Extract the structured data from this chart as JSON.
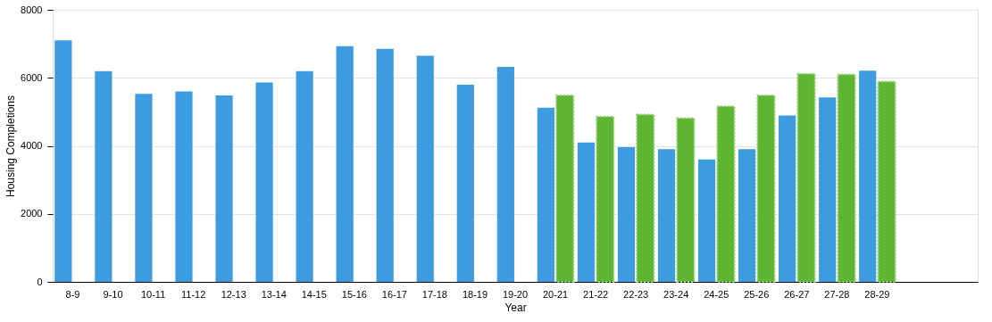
{
  "chart_data": {
    "type": "bar",
    "xlabel": "Year",
    "ylabel": "Housing Completions",
    "categories": [
      "8-9",
      "9-10",
      "10-11",
      "11-12",
      "12-13",
      "13-14",
      "14-15",
      "15-16",
      "16-17",
      "17-18",
      "18-19",
      "19-20",
      "20-21",
      "21-22",
      "22-23",
      "23-24",
      "24-25",
      "25-26",
      "26-27",
      "27-28",
      "28-29",
      null,
      null
    ],
    "series": [
      {
        "color": "#3d9be0",
        "values": [
          7100,
          6200,
          5530,
          5600,
          5480,
          5860,
          6200,
          6930,
          6850,
          6650,
          5800,
          6320,
          5120,
          4100,
          3960,
          3900,
          3600,
          3900,
          4890,
          5420,
          6210,
          null,
          null
        ]
      },
      {
        "color": "#5db531",
        "line_style": "dotted",
        "values": [
          null,
          null,
          null,
          null,
          null,
          null,
          null,
          null,
          null,
          null,
          null,
          null,
          5480,
          4860,
          4920,
          4810,
          5160,
          5480,
          6120,
          6100,
          5890,
          null,
          null
        ]
      }
    ],
    "ylim": [
      0,
      8000
    ],
    "yticks": [
      0,
      2000,
      4000,
      6000,
      8000
    ],
    "grid": "y"
  }
}
